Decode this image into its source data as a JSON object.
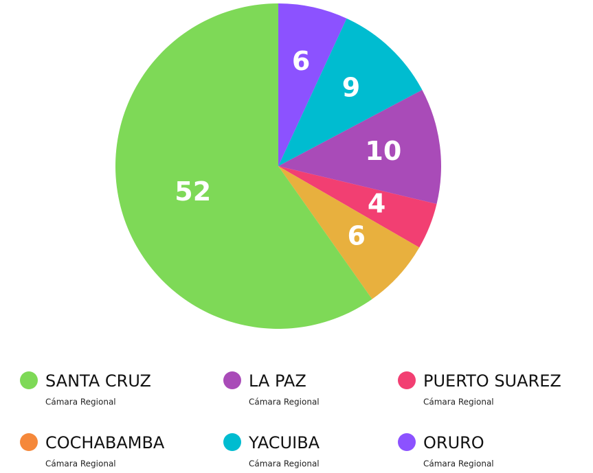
{
  "chart_data": {
    "type": "pie",
    "categories": [
      "ORURO",
      "YACUIBA",
      "LA PAZ",
      "PUERTO SUAREZ",
      "COCHABAMBA",
      "SANTA CRUZ"
    ],
    "values": [
      6,
      9,
      10,
      4,
      6,
      52
    ],
    "colors": [
      "#8c52ff",
      "#00bcd0",
      "#a94bb8",
      "#f23f72",
      "#e8b03e",
      "#7ed957"
    ],
    "legend_colors": [
      "#8c52ff",
      "#00bcd0",
      "#a94bb8",
      "#f23f72",
      "#f5883a",
      "#7ed957"
    ],
    "legend_notes": [
      "Cámara Regional",
      "Cámara Regional",
      "Cámara Regional",
      "Cámara Regional",
      "Cámara Regional",
      "Cámara Regional"
    ]
  }
}
